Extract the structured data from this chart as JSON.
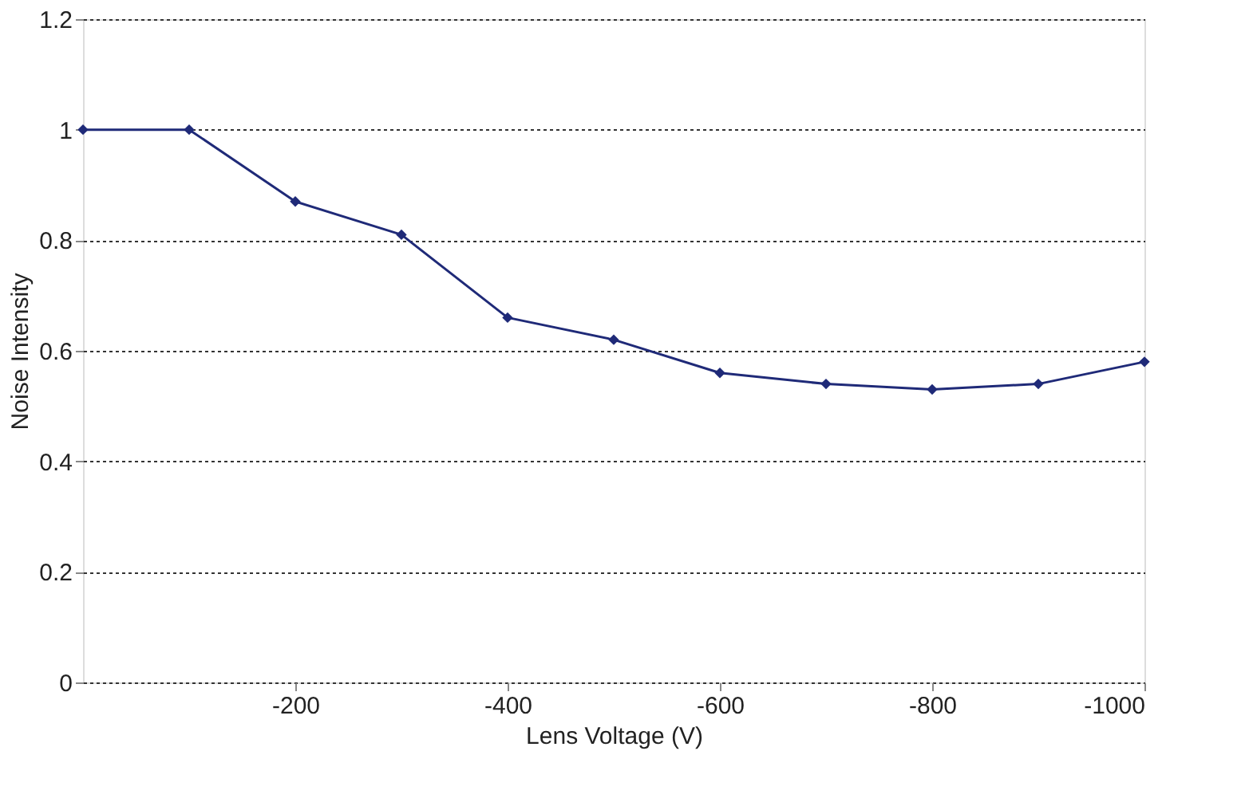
{
  "chart_data": {
    "type": "line",
    "xlabel": "Lens Voltage (V)",
    "ylabel": "Noise Intensity",
    "x": [
      0,
      -100,
      -200,
      -300,
      -400,
      -500,
      -600,
      -700,
      -800,
      -900,
      -1000
    ],
    "series": [
      {
        "color": "#1f2a78",
        "values": [
          1.0,
          1.0,
          0.87,
          0.81,
          0.66,
          0.62,
          0.56,
          0.54,
          0.53,
          0.54,
          0.58
        ]
      }
    ],
    "xlim": [
      0,
      -1000
    ],
    "xticks": [
      -200,
      -400,
      -600,
      -800,
      -1000
    ],
    "ylim": [
      0,
      1.2
    ],
    "yticks": [
      0,
      0.2,
      0.4,
      0.6,
      0.8,
      1,
      1.2
    ],
    "grid": "y",
    "marker": "diamond",
    "line_style": "solid"
  }
}
